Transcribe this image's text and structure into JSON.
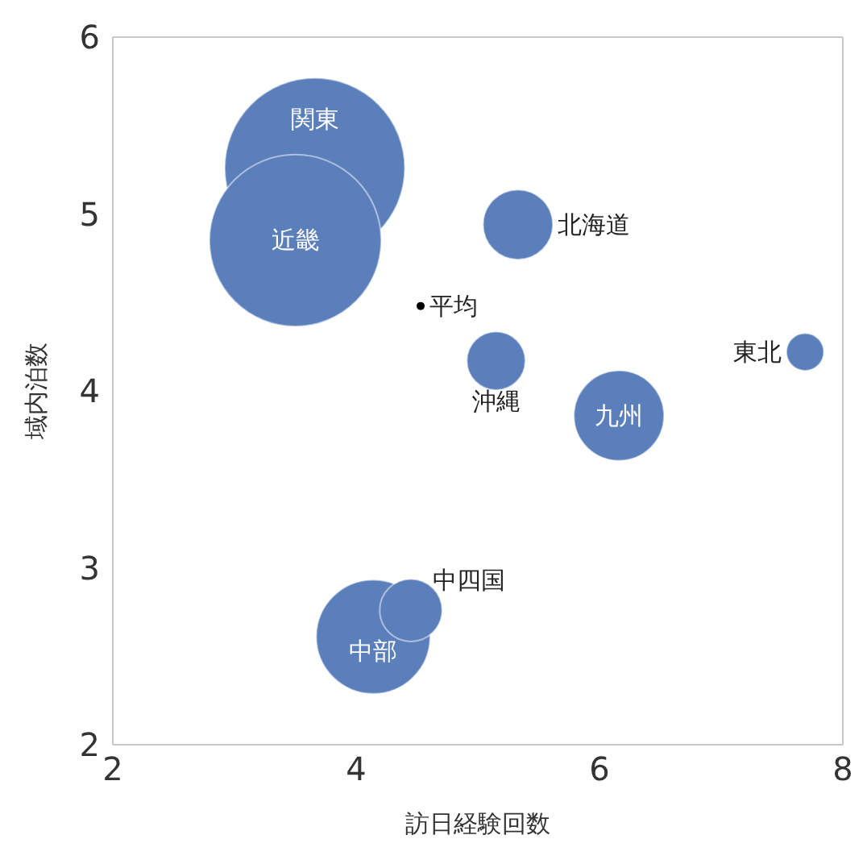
{
  "chart_data": {
    "type": "bubble",
    "xlabel": "訪日経験回数",
    "ylabel": "域内泊数",
    "xlim": [
      2,
      8
    ],
    "ylim": [
      2,
      6
    ],
    "xticks": [
      2,
      4,
      6,
      8
    ],
    "yticks": [
      2,
      3,
      4,
      5,
      6
    ],
    "legend": false,
    "series": [
      {
        "color": "#5b7fbb",
        "x": [
          3.66,
          3.5,
          5.33,
          5.15,
          7.69,
          6.16,
          4.14,
          4.45
        ],
        "values": [
          5.26,
          4.85,
          4.94,
          4.17,
          4.22,
          3.86,
          2.61,
          2.76
        ],
        "sizes": [
          1,
          0.91,
          0.15,
          0.105,
          0.043,
          0.25,
          0.4,
          0.12
        ]
      },
      {
        "name": "平均",
        "type": "scatter",
        "marker": "circle",
        "color": "#000000",
        "x": [
          4.53
        ],
        "values": [
          4.48
        ]
      }
    ],
    "annotations": [
      {
        "text": "関東",
        "x": 3.66,
        "y": 5.26
      },
      {
        "text": "近畿",
        "x": 3.5,
        "y": 4.85
      },
      {
        "text": "北海道",
        "x": 5.33,
        "y": 4.94
      },
      {
        "text": "沖縄",
        "x": 5.15,
        "y": 4.17
      },
      {
        "text": "東北",
        "x": 7.69,
        "y": 4.22
      },
      {
        "text": "九州",
        "x": 6.16,
        "y": 3.86
      },
      {
        "text": "中部",
        "x": 4.14,
        "y": 2.61
      },
      {
        "text": "中四国",
        "x": 4.45,
        "y": 2.76
      }
    ]
  }
}
